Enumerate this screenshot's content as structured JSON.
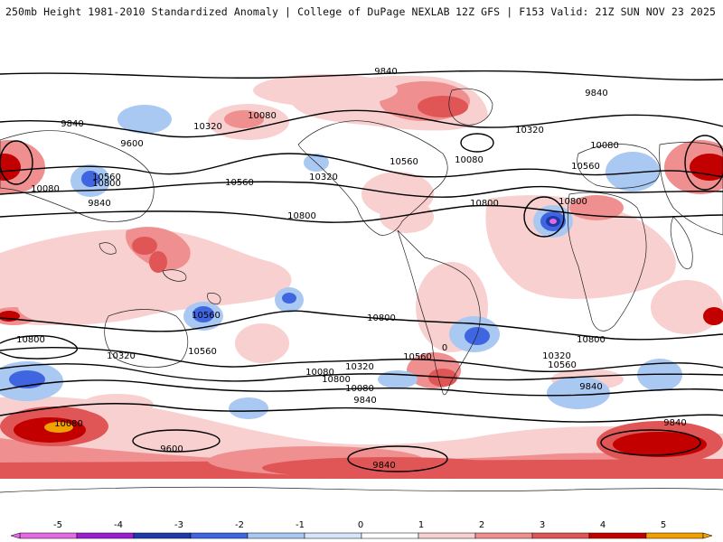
{
  "header": {
    "title": "250mb Height 1981-2010 Standardized Anomaly | College of DuPage NEXLAB",
    "run_info": "12Z GFS | F153 Valid: 21Z SUN NOV 23 2025"
  },
  "contour_labels": [
    "9840",
    "9840",
    "9840",
    "9600",
    "10080",
    "10320",
    "10560",
    "10800",
    "10080",
    "9840",
    "10560",
    "10800",
    "10320",
    "10560",
    "10800",
    "10080",
    "10320",
    "10080",
    "10560",
    "10800",
    "10560",
    "10800",
    "10800",
    "10800",
    "10320",
    "10560",
    "10560",
    "10320",
    "10800",
    "10080",
    "9840",
    "10560",
    "10320",
    "10080",
    "9840",
    "10080",
    "9840",
    "9600",
    "9840",
    "0"
  ],
  "colorbar": {
    "ticks": [
      "-5",
      "-4",
      "-3",
      "-2",
      "-1",
      "0",
      "1",
      "2",
      "3",
      "4",
      "5"
    ],
    "colors": [
      "#e46ae4",
      "#9a1fd0",
      "#1f3aa6",
      "#3f66e0",
      "#a9c8f2",
      "#d6e6fa",
      "#ffffff",
      "#f9d0d0",
      "#ef8f8f",
      "#e05555",
      "#c20000",
      "#f0a000"
    ]
  }
}
